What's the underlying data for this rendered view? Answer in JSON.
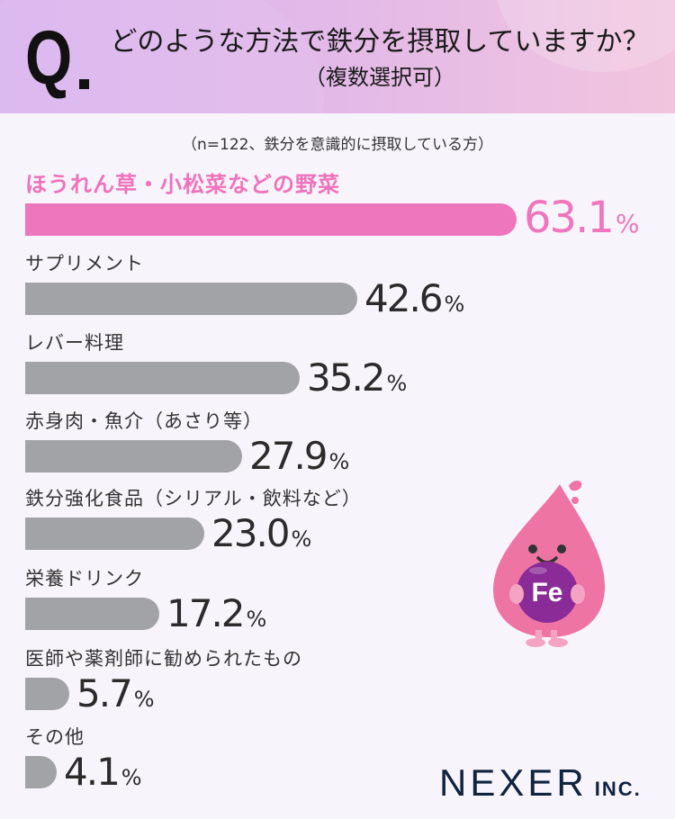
{
  "header": {
    "q_mark": "Q",
    "title": "どのような方法で鉄分を摂取していますか？",
    "subtitle": "（複数選択可）"
  },
  "note": "（n=122、鉄分を意識的に摂取している方）",
  "items": [
    {
      "label": "ほうれん草・小松菜などの野菜",
      "value": "63.1",
      "sign": "%"
    },
    {
      "label": "サプリメント",
      "value": "42.6",
      "sign": "%"
    },
    {
      "label": "レバー料理",
      "value": "35.2",
      "sign": "%"
    },
    {
      "label": "赤身肉・魚介（あさり等）",
      "value": "27.9",
      "sign": "%"
    },
    {
      "label": "鉄分強化食品（シリアル・飲料など）",
      "value": "23.0",
      "sign": "%"
    },
    {
      "label": "栄養ドリンク",
      "value": "17.2",
      "sign": "%"
    },
    {
      "label": "医師や薬剤師に勧められたもの",
      "value": "5.7",
      "sign": "%"
    },
    {
      "label": "その他",
      "value": "4.1",
      "sign": "%"
    }
  ],
  "mascot": {
    "text": "Fe"
  },
  "logo": {
    "main": "NEXER",
    "inc": "INC."
  },
  "colors": {
    "highlight": "#ee76bd",
    "bar": "#a2a3a7",
    "header_start": "#d9b6f0",
    "header_end": "#f1c5de"
  },
  "chart_data": {
    "type": "bar",
    "orientation": "horizontal",
    "title": "どのような方法で鉄分を摂取していますか？（複数選択可）",
    "subtitle": "（n=122、鉄分を意識的に摂取している方）",
    "categories": [
      "ほうれん草・小松菜などの野菜",
      "サプリメント",
      "レバー料理",
      "赤身肉・魚介（あさり等）",
      "鉄分強化食品（シリアル・飲料など）",
      "栄養ドリンク",
      "医師や薬剤師に勧められたもの",
      "その他"
    ],
    "values": [
      63.1,
      42.6,
      35.2,
      27.9,
      23.0,
      17.2,
      5.7,
      4.1
    ],
    "unit": "%",
    "xlabel": "",
    "ylabel": "",
    "xlim": [
      0,
      100
    ],
    "grid": false,
    "legend": "none"
  }
}
